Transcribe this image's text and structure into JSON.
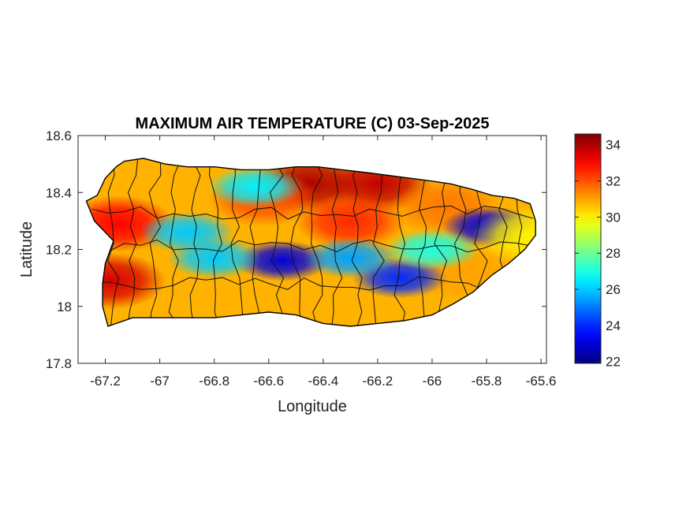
{
  "chart_data": {
    "type": "heatmap",
    "title": "MAXIMUM AIR TEMPERATURE (C) 03-Sep-2025",
    "xlabel": "Longitude",
    "ylabel": "Latitude",
    "xlim": [
      -67.3,
      -65.58
    ],
    "ylim": [
      17.8,
      18.6
    ],
    "xticks": [
      -67.2,
      -67,
      -66.8,
      -66.6,
      -66.4,
      -66.2,
      -66,
      -65.8,
      -65.6
    ],
    "xtick_labels": [
      "-67.2",
      "-67",
      "-66.8",
      "-66.6",
      "-66.4",
      "-66.2",
      "-66",
      "-65.8",
      "-65.6"
    ],
    "yticks": [
      17.8,
      18,
      18.2,
      18.4,
      18.6
    ],
    "ytick_labels": [
      "17.8",
      "18",
      "18.2",
      "18.4",
      "18.6"
    ],
    "colorbar": {
      "min": 21.9,
      "max": 34.6,
      "ticks": [
        22,
        24,
        26,
        28,
        30,
        32,
        34
      ],
      "tick_labels": [
        "22",
        "24",
        "26",
        "28",
        "30",
        "32",
        "34"
      ],
      "colormap": "jet",
      "colors": [
        "#00008f",
        "#0000ff",
        "#00ffff",
        "#ffff00",
        "#ff0000",
        "#800000"
      ]
    },
    "grid": false,
    "island_outline_lonlat": [
      [
        -67.27,
        18.37
      ],
      [
        -67.23,
        18.39
      ],
      [
        -67.2,
        18.45
      ],
      [
        -67.16,
        18.49
      ],
      [
        -67.13,
        18.51
      ],
      [
        -67.06,
        18.52
      ],
      [
        -66.98,
        18.5
      ],
      [
        -66.9,
        18.49
      ],
      [
        -66.8,
        18.49
      ],
      [
        -66.7,
        18.48
      ],
      [
        -66.6,
        18.48
      ],
      [
        -66.5,
        18.49
      ],
      [
        -66.42,
        18.49
      ],
      [
        -66.33,
        18.48
      ],
      [
        -66.24,
        18.47
      ],
      [
        -66.16,
        18.46
      ],
      [
        -66.08,
        18.45
      ],
      [
        -66.0,
        18.44
      ],
      [
        -65.93,
        18.43
      ],
      [
        -65.85,
        18.41
      ],
      [
        -65.78,
        18.39
      ],
      [
        -65.7,
        18.38
      ],
      [
        -65.64,
        18.36
      ],
      [
        -65.62,
        18.3
      ],
      [
        -65.62,
        18.25
      ],
      [
        -65.66,
        18.2
      ],
      [
        -65.72,
        18.15
      ],
      [
        -65.78,
        18.11
      ],
      [
        -65.85,
        18.05
      ],
      [
        -65.92,
        18.01
      ],
      [
        -66.0,
        17.97
      ],
      [
        -66.1,
        17.95
      ],
      [
        -66.2,
        17.94
      ],
      [
        -66.3,
        17.93
      ],
      [
        -66.4,
        17.94
      ],
      [
        -66.5,
        17.97
      ],
      [
        -66.6,
        17.98
      ],
      [
        -66.7,
        17.97
      ],
      [
        -66.8,
        17.96
      ],
      [
        -66.9,
        17.96
      ],
      [
        -67.0,
        17.96
      ],
      [
        -67.1,
        17.96
      ],
      [
        -67.19,
        17.93
      ],
      [
        -67.21,
        18.0
      ],
      [
        -67.21,
        18.08
      ],
      [
        -67.2,
        18.15
      ],
      [
        -67.17,
        18.23
      ],
      [
        -67.24,
        18.3
      ],
      [
        -67.27,
        18.37
      ]
    ],
    "temperature_hotspots": [
      {
        "lon": -66.45,
        "lat": 18.43,
        "value": 34.0
      },
      {
        "lon": -66.2,
        "lat": 18.43,
        "value": 33.8
      },
      {
        "lon": -67.18,
        "lat": 18.09,
        "value": 33.5
      },
      {
        "lon": -67.15,
        "lat": 18.29,
        "value": 33.0
      },
      {
        "lon": -66.62,
        "lat": 18.38,
        "value": 32.0
      },
      {
        "lon": -66.3,
        "lat": 18.3,
        "value": 32.5
      },
      {
        "lon": -65.95,
        "lat": 18.35,
        "value": 31.5
      },
      {
        "lon": -65.9,
        "lat": 18.12,
        "value": 31.0
      },
      {
        "lon": -66.55,
        "lat": 18.16,
        "value": 23.0
      },
      {
        "lon": -66.12,
        "lat": 18.1,
        "value": 24.0
      },
      {
        "lon": -65.79,
        "lat": 18.28,
        "value": 23.0
      },
      {
        "lon": -66.0,
        "lat": 18.2,
        "value": 27.0
      },
      {
        "lon": -66.8,
        "lat": 18.17,
        "value": 26.0
      },
      {
        "lon": -66.9,
        "lat": 18.26,
        "value": 26.0
      },
      {
        "lon": -66.65,
        "lat": 18.42,
        "value": 26.5
      },
      {
        "lon": -66.3,
        "lat": 18.17,
        "value": 25.5
      },
      {
        "lon": -65.65,
        "lat": 18.25,
        "value": 30.0
      }
    ]
  }
}
